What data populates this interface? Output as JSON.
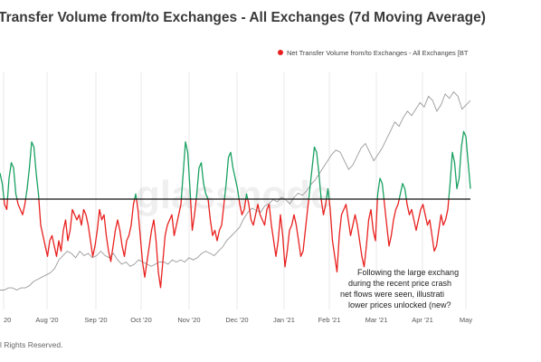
{
  "chart_data": {
    "type": "line",
    "title": "Transfer Volume from/to Exchanges - All Exchanges (7d Moving Average)",
    "watermark": "glassnode",
    "legend": {
      "label": "Net Transfer Volume from/to Exchanges - All Exchanges [BT",
      "color": "#e8211f",
      "placement": "top-right"
    },
    "x_tick_labels": [
      "20",
      "Aug '20",
      "Sep '20",
      "Oct '20",
      "Nov '20",
      "Dec '20",
      "Jan '21",
      "Feb '21",
      "Mar '21",
      "Apr '21",
      "May"
    ],
    "x_range": [
      "2020-07-13",
      "2021-05-12"
    ],
    "grid": "vertical",
    "annotation": [
      "Following the large exchang",
      "during the recent price crash",
      "net flows were seen, illustrati",
      "lower prices unlocked (new?"
    ],
    "colors": {
      "positive": "#1aa162",
      "negative": "#e8211f",
      "zero_line": "#111111",
      "price": "#9a9a9a",
      "grid": "#e8e8e8"
    },
    "series": [
      {
        "role": "net_flow",
        "y_range": [
          -1.0,
          1.0
        ],
        "values": [
          0.25,
          0.15,
          -0.05,
          -0.1,
          0.2,
          0.35,
          0.3,
          0.05,
          -0.05,
          -0.1,
          -0.15,
          -0.05,
          0.1,
          0.3,
          0.55,
          0.5,
          0.25,
          0.05,
          -0.25,
          -0.35,
          -0.45,
          -0.55,
          -0.4,
          -0.35,
          -0.45,
          -0.55,
          -0.4,
          -0.5,
          -0.3,
          -0.2,
          -0.4,
          -0.3,
          -0.1,
          -0.15,
          -0.2,
          -0.15,
          -0.25,
          -0.1,
          -0.15,
          -0.25,
          -0.4,
          -0.55,
          -0.45,
          -0.3,
          -0.1,
          -0.2,
          -0.15,
          -0.35,
          -0.5,
          -0.6,
          -0.45,
          -0.3,
          -0.2,
          -0.3,
          -0.45,
          -0.55,
          -0.4,
          -0.35,
          -0.25,
          -0.05,
          0.05,
          -0.1,
          -0.35,
          -0.6,
          -0.75,
          -0.6,
          -0.45,
          -0.3,
          -0.2,
          -0.4,
          -0.7,
          -0.85,
          -0.6,
          -0.35,
          -0.25,
          -0.2,
          -0.15,
          -0.35,
          -0.25,
          -0.15,
          -0.05,
          0.25,
          0.55,
          0.45,
          0.1,
          -0.3,
          -0.15,
          0.05,
          0.3,
          0.35,
          0.15,
          0.05,
          0.0,
          -0.2,
          -0.35,
          -0.3,
          -0.4,
          -0.3,
          -0.25,
          -0.05,
          0.15,
          0.4,
          0.45,
          0.3,
          0.2,
          0.1,
          -0.05,
          -0.15,
          -0.1,
          0.05,
          -0.05,
          -0.2,
          -0.25,
          -0.15,
          -0.05,
          -0.15,
          -0.2,
          -0.25,
          -0.1,
          -0.05,
          -0.25,
          -0.4,
          -0.55,
          -0.4,
          -0.15,
          -0.35,
          -0.65,
          -0.5,
          -0.3,
          -0.25,
          -0.15,
          -0.25,
          -0.4,
          -0.55,
          -0.5,
          -0.3,
          -0.1,
          0.1,
          0.3,
          0.5,
          0.45,
          0.25,
          0.0,
          -0.15,
          -0.05,
          0.1,
          -0.1,
          -0.4,
          -0.55,
          -0.7,
          -0.35,
          -0.15,
          -0.1,
          -0.05,
          -0.2,
          -0.35,
          -0.25,
          -0.15,
          -0.25,
          -0.4,
          -0.55,
          -0.65,
          -0.45,
          -0.2,
          -0.1,
          -0.3,
          -0.4,
          0.05,
          0.2,
          0.15,
          -0.05,
          -0.25,
          -0.45,
          -0.35,
          -0.2,
          -0.1,
          -0.05,
          0.05,
          0.15,
          0.1,
          -0.05,
          -0.15,
          -0.1,
          -0.2,
          -0.3,
          -0.2,
          -0.1,
          -0.05,
          -0.15,
          -0.25,
          -0.2,
          -0.35,
          -0.5,
          -0.45,
          -0.3,
          -0.15,
          -0.25,
          -0.2,
          -0.1,
          0.15,
          0.45,
          0.35,
          0.1,
          0.2,
          0.5,
          0.65,
          0.6,
          0.35,
          0.1
        ]
      },
      {
        "role": "price",
        "y_range": [
          0,
          1
        ],
        "values": [
          0.04,
          0.04,
          0.05,
          0.05,
          0.04,
          0.05,
          0.05,
          0.06,
          0.08,
          0.09,
          0.1,
          0.11,
          0.12,
          0.14,
          0.18,
          0.2,
          0.22,
          0.21,
          0.19,
          0.22,
          0.2,
          0.21,
          0.19,
          0.2,
          0.22,
          0.2,
          0.19,
          0.21,
          0.18,
          0.16,
          0.17,
          0.15,
          0.16,
          0.18,
          0.17,
          0.16,
          0.15,
          0.16,
          0.17,
          0.17,
          0.16,
          0.18,
          0.17,
          0.18,
          0.17,
          0.19,
          0.18,
          0.19,
          0.21,
          0.22,
          0.21,
          0.2,
          0.22,
          0.24,
          0.27,
          0.29,
          0.31,
          0.33,
          0.37,
          0.4,
          0.42,
          0.41,
          0.4,
          0.43,
          0.44,
          0.46,
          0.45,
          0.47,
          0.46,
          0.44,
          0.47,
          0.49,
          0.48,
          0.5,
          0.53,
          0.55,
          0.58,
          0.61,
          0.64,
          0.67,
          0.69,
          0.68,
          0.64,
          0.6,
          0.62,
          0.66,
          0.7,
          0.72,
          0.68,
          0.64,
          0.67,
          0.7,
          0.74,
          0.78,
          0.82,
          0.8,
          0.84,
          0.87,
          0.85,
          0.88,
          0.91,
          0.89,
          0.94,
          0.92,
          0.87,
          0.9,
          0.95,
          0.93,
          0.96,
          0.94,
          0.88,
          0.9,
          0.92
        ]
      }
    ],
    "footer": "l Rights Reserved."
  }
}
